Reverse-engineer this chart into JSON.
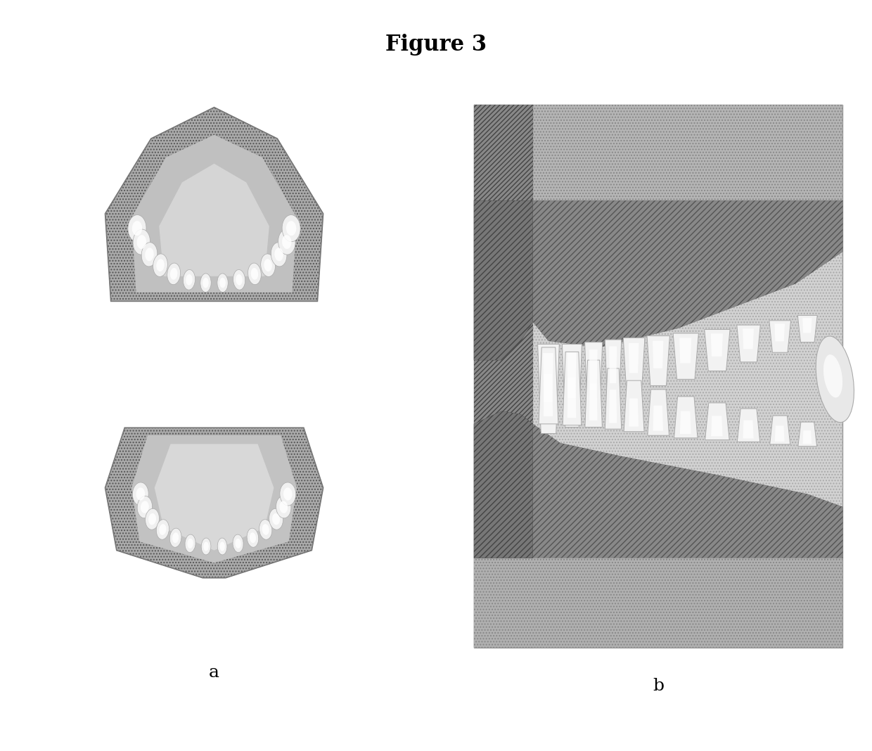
{
  "title": "Figure 3",
  "title_fontsize": 22,
  "title_fontweight": "bold",
  "label_a": "a",
  "label_b": "b",
  "label_fontsize": 18,
  "bg_color": "#ffffff",
  "hatch_color": "#555555",
  "arch_base": "#b0b0b0",
  "arch_inner": "#c8c8c8",
  "tooth_white": "#f8f8f8",
  "gum_dark": "#707070",
  "side_bg_light": "#d0d0d0",
  "side_bg_dark": "#909090"
}
